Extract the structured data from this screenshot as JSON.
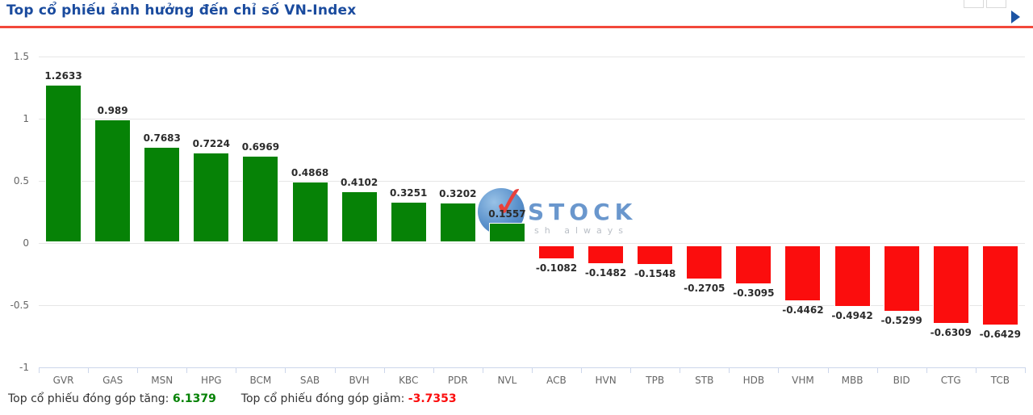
{
  "header": {
    "title": "Top cổ phiếu ảnh hưởng đến chỉ số VN-Index",
    "title_color": "#1a4b9e",
    "accent_line_color": "#f2473a"
  },
  "chart_data": {
    "type": "bar",
    "title": "Top cổ phiếu ảnh hưởng đến chỉ số VN-Index",
    "categories": [
      "GVR",
      "GAS",
      "MSN",
      "HPG",
      "BCM",
      "SAB",
      "BVH",
      "KBC",
      "PDR",
      "NVL",
      "ACB",
      "HVN",
      "TPB",
      "STB",
      "HDB",
      "VHM",
      "MBB",
      "BID",
      "CTG",
      "TCB"
    ],
    "values": [
      1.2633,
      0.989,
      0.7683,
      0.7224,
      0.6969,
      0.4868,
      0.4102,
      0.3251,
      0.3202,
      0.1557,
      -0.1082,
      -0.1482,
      -0.1548,
      -0.2705,
      -0.3095,
      -0.4462,
      -0.4942,
      -0.5299,
      -0.6309,
      -0.6429
    ],
    "xlabel": "",
    "ylabel": "",
    "ylim": [
      -1,
      1.5
    ],
    "yticks": [
      1.5,
      1,
      0.5,
      0,
      -0.5,
      -1
    ],
    "ytick_labels": [
      "1.5",
      "1",
      "0.5",
      "0",
      "-0.5",
      "-1"
    ],
    "grid": true,
    "legend": false,
    "positive_color": "#068206",
    "negative_color": "#fb0d0d",
    "gridline_color": "#e6e6e6",
    "axis_color": "#ccd6eb",
    "tick_label_color": "#666666"
  },
  "watermark": {
    "text": "STOCK",
    "tagline": "sh always",
    "check": "✓"
  },
  "footer": {
    "gain_label": "Top cổ phiếu đóng góp tăng:",
    "gain_value": "6.1379",
    "gain_color": "#068206",
    "loss_label": "Top cổ phiếu đóng góp giảm:",
    "loss_value": "-3.7353",
    "loss_color": "#fb0d0d"
  }
}
